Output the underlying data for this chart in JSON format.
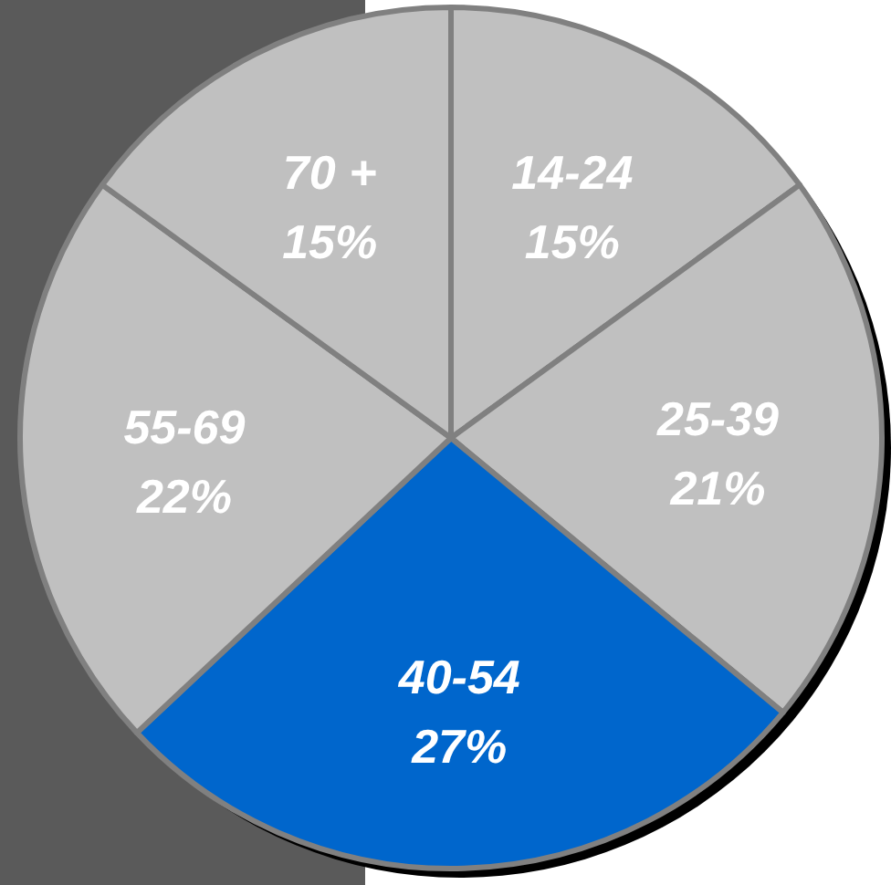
{
  "chart_data": {
    "type": "pie",
    "categories": [
      "14-24",
      "25-39",
      "40-54",
      "55-69",
      "70 +"
    ],
    "values": [
      15,
      21,
      27,
      22,
      15
    ],
    "value_labels": [
      "15%",
      "21%",
      "27%",
      "22%",
      "15%"
    ],
    "colors": [
      "#c0c0c0",
      "#c0c0c0",
      "#0066cc",
      "#c0c0c0",
      "#c0c0c0"
    ]
  }
}
